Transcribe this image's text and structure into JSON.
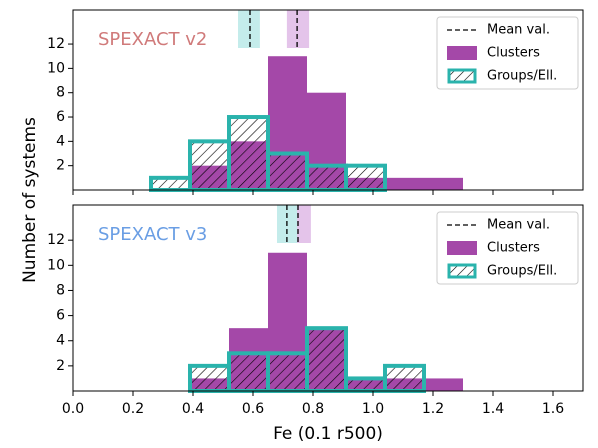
{
  "chart_data": [
    {
      "type": "histogram",
      "title": "SPEXACT v2",
      "title_color": "#d07a7a",
      "y_label": "Number of systems",
      "bins": [
        0.26,
        0.39,
        0.52,
        0.65,
        0.78,
        0.91,
        1.04,
        1.17,
        1.3
      ],
      "series": [
        {
          "name": "Clusters",
          "color": "#a448a8",
          "values": [
            0,
            2,
            4,
            11,
            8,
            1,
            1,
            1
          ]
        },
        {
          "name": "Groups/Ell.",
          "color": "#2ab3ac",
          "hatch": true,
          "values": [
            1,
            4,
            6,
            3,
            2,
            2,
            0,
            0
          ]
        }
      ],
      "mean_label": "Mean val.",
      "means": [
        {
          "value": 0.747,
          "range": [
            0.713,
            0.787
          ],
          "color": "#e4c4ea"
        },
        {
          "value": 0.59,
          "range": [
            0.55,
            0.623
          ],
          "color": "#c4eceb"
        }
      ],
      "xlim": [
        0,
        1.7
      ],
      "xticks": [
        0.0,
        0.2,
        0.4,
        0.6,
        0.8,
        1.0,
        1.2,
        1.4,
        1.6
      ],
      "ylim": [
        0,
        14.8
      ],
      "yticks": [
        2,
        4,
        6,
        8,
        10,
        12
      ]
    },
    {
      "type": "histogram",
      "title": "SPEXACT v3",
      "title_color": "#6a9ee4",
      "x_label": "Fe (0.1 r500)",
      "bins": [
        0.26,
        0.39,
        0.52,
        0.65,
        0.78,
        0.91,
        1.04,
        1.17,
        1.3
      ],
      "series": [
        {
          "name": "Clusters",
          "color": "#a448a8",
          "values": [
            0,
            1,
            5,
            11,
            5,
            1,
            1,
            1
          ]
        },
        {
          "name": "Groups/Ell.",
          "color": "#2ab3ac",
          "hatch": true,
          "values": [
            0,
            2,
            3,
            3,
            5,
            1,
            2,
            0
          ]
        }
      ],
      "mean_label": "Mean val.",
      "means": [
        {
          "value": 0.75,
          "range": [
            0.717,
            0.793
          ],
          "color": "#e4c4ea"
        },
        {
          "value": 0.713,
          "range": [
            0.68,
            0.747
          ],
          "color": "#c4eceb"
        }
      ],
      "xlim": [
        0,
        1.7
      ],
      "xticks": [
        {
          "value": 0,
          "label": "0.0"
        },
        0.2,
        0.4,
        0.6,
        0.8,
        {
          "value": 1,
          "label": "1.0"
        },
        1.2,
        1.4,
        1.6
      ],
      "ylim": [
        0,
        14.8
      ],
      "yticks": [
        2,
        4,
        6,
        8,
        10,
        12
      ]
    }
  ]
}
